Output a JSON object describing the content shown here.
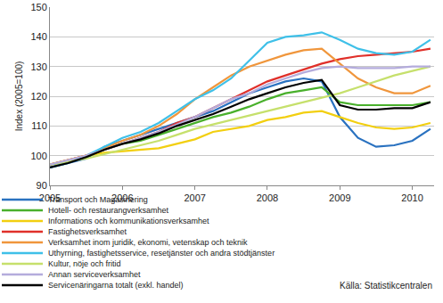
{
  "chart_data": {
    "type": "line",
    "y_label": "Index (2005=100)",
    "x": [
      2005,
      2005.25,
      2005.5,
      2005.75,
      2006,
      2006.25,
      2006.5,
      2006.75,
      2007,
      2007.25,
      2007.5,
      2007.75,
      2008,
      2008.25,
      2008.5,
      2008.75,
      2009,
      2009.25,
      2009.5,
      2009.75,
      2010,
      2010.25
    ],
    "xlim": [
      2005,
      2010.3
    ],
    "xticks": [
      2005,
      2006,
      2007,
      2008,
      2009,
      2010
    ],
    "ylim": [
      90,
      150
    ],
    "yticks": [
      90,
      100,
      110,
      120,
      130,
      140,
      150
    ],
    "grid": true,
    "legend": "bottom",
    "annotations": [
      {
        "text": "Källa: Statistikcentralen"
      }
    ],
    "series": [
      {
        "name": "Transport och Magasinering",
        "color": "#2a72c0",
        "values": [
          96,
          97.5,
          99,
          103,
          105,
          107,
          109,
          111,
          113,
          115,
          118,
          121,
          123,
          125,
          126,
          125,
          113,
          106,
          103,
          103.5,
          105,
          109
        ]
      },
      {
        "name": "Hotell- och restaurangverksamhet",
        "color": "#49b02c",
        "values": [
          97,
          98,
          99.5,
          102,
          104,
          105,
          107,
          109,
          111,
          113,
          114.5,
          116.5,
          119,
          121,
          122,
          123,
          118,
          117,
          117,
          117,
          117,
          118
        ]
      },
      {
        "name": "Informations och kommunikationsverksamhet",
        "color": "#f2cf10",
        "values": [
          97,
          98.5,
          100,
          101,
          101.5,
          102,
          102.5,
          104,
          105.5,
          108,
          109,
          110,
          112,
          113,
          114.5,
          115,
          113,
          111,
          109.5,
          109,
          109.5,
          111
        ]
      },
      {
        "name": "Fastighetsverksamhet",
        "color": "#e0302a",
        "values": [
          97,
          98.5,
          100,
          102,
          104,
          106,
          108,
          111,
          113,
          116,
          119,
          122,
          125,
          127,
          129,
          131,
          132.5,
          133.5,
          134,
          134.5,
          135,
          136
        ]
      },
      {
        "name": "Verksamhet inom juridik, ekonomi, vetenskap och teknik",
        "color": "#f0963c",
        "values": [
          97,
          98.5,
          100,
          102.5,
          105,
          107,
          110,
          114,
          119,
          123,
          127,
          130,
          132,
          134,
          135.5,
          136,
          131,
          126,
          123,
          121,
          121,
          123.5
        ]
      },
      {
        "name": "Uthyrning, fastighetsservice, resetjänster och andra stödtjänster",
        "color": "#3fc0e8",
        "values": [
          96,
          97.5,
          100,
          103,
          106,
          108,
          111,
          115,
          119,
          122,
          126,
          132,
          138,
          140,
          140.5,
          141.5,
          139,
          136,
          134.5,
          134,
          135,
          139
        ]
      },
      {
        "name": "Kultur, nöje och fritid",
        "color": "#c6e06c",
        "values": [
          97,
          98,
          99,
          100.5,
          102,
          103.5,
          105,
          107,
          109,
          110.5,
          112,
          113.5,
          115,
          116.5,
          118,
          119.5,
          121,
          123,
          125,
          127,
          128.5,
          130
        ]
      },
      {
        "name": "Annan serviceverksamhet",
        "color": "#b4acdc",
        "values": [
          97,
          98.5,
          100,
          102,
          104,
          106,
          108,
          110.5,
          113,
          116,
          119,
          121,
          124,
          126,
          128,
          129.5,
          130,
          129.5,
          129.5,
          129.5,
          130,
          130
        ]
      },
      {
        "name": "Servicenäringarna totalt (exkl. handel)",
        "color": "#000000",
        "values": [
          96,
          97.5,
          99.5,
          102,
          104,
          105.5,
          107.5,
          110,
          112,
          114,
          116.5,
          119,
          121,
          123,
          124.5,
          125.5,
          117,
          115.5,
          115.5,
          116,
          116,
          118
        ]
      }
    ]
  }
}
